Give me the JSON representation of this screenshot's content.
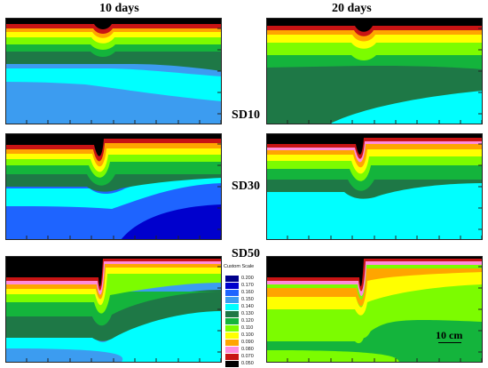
{
  "titles": {
    "col_left": "10 days",
    "col_right": "20 days"
  },
  "row_labels": {
    "row1": "SD10",
    "row2": "SD30",
    "row3": "SD50"
  },
  "legend": {
    "title": "Custom Scale",
    "entries": [
      {
        "value": "0.200",
        "color": "#00008b"
      },
      {
        "value": "0.170",
        "color": "#0000cd"
      },
      {
        "value": "0.160",
        "color": "#1e64ff"
      },
      {
        "value": "0.150",
        "color": "#3c9cf0"
      },
      {
        "value": "0.140",
        "color": "#00ffff"
      },
      {
        "value": "0.130",
        "color": "#1e7846"
      },
      {
        "value": "0.120",
        "color": "#14b43c"
      },
      {
        "value": "0.110",
        "color": "#7cfc00"
      },
      {
        "value": "0.100",
        "color": "#ffff00"
      },
      {
        "value": "0.090",
        "color": "#ffa500"
      },
      {
        "value": "0.080",
        "color": "#ff8cdc"
      },
      {
        "value": "0.070",
        "color": "#c81414"
      },
      {
        "value": "0.050",
        "color": "#000000"
      }
    ]
  },
  "scale_bar": {
    "label": "10 cm"
  },
  "colors": {
    "dry": "#000000",
    "very_low": "#c81414",
    "low_pink": "#ff8cdc",
    "orange": "#ffa500",
    "yellow": "#ffff00",
    "lime": "#7cfc00",
    "green": "#14b43c",
    "dark_green": "#1e7846",
    "cyan": "#00ffff",
    "light_blue": "#3c9cf0",
    "blue": "#1e64ff",
    "deep_blue": "#0000cd"
  }
}
